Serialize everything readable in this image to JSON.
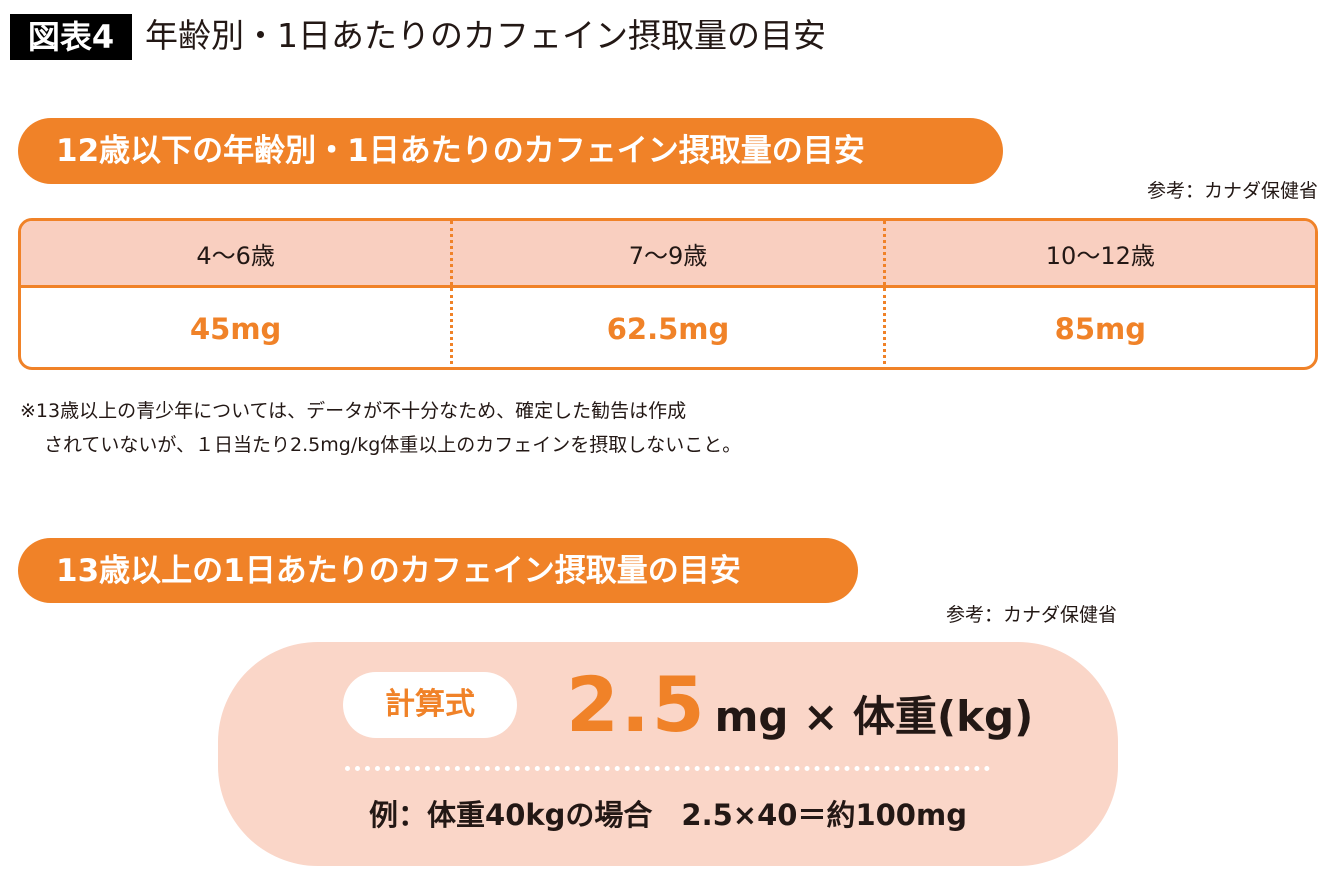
{
  "header": {
    "figure_label": "図表4",
    "title": "年齢別・1日あたりのカフェイン摂取量の目安"
  },
  "section1": {
    "heading": "12歳以下の年齢別・1日あたりのカフェイン摂取量の目安",
    "source": "参考：カナダ保健省",
    "table": {
      "headers": [
        "4〜6歳",
        "7〜9歳",
        "10〜12歳"
      ],
      "values": [
        "45mg",
        "62.5mg",
        "85mg"
      ]
    },
    "notes": [
      "※13歳以上の青少年については、データが不十分なため、確定した勧告は作成",
      "されていないが、１日当たり2.5mg/kg体重以上のカフェインを摂取しないこと。"
    ]
  },
  "section2": {
    "heading": "13歳以上の1日あたりのカフェイン摂取量の目安",
    "source": "参考：カナダ保健省",
    "calc_label": "計算式",
    "coefficient": "2.5",
    "formula_rest": "mg × 体重(kg)",
    "example": "例：体重40kgの場合　2.5×40＝約100mg"
  },
  "colors": {
    "accent": "#f08228",
    "header_fill": "#f9cfc0",
    "box_fill": "#fad6c8"
  }
}
